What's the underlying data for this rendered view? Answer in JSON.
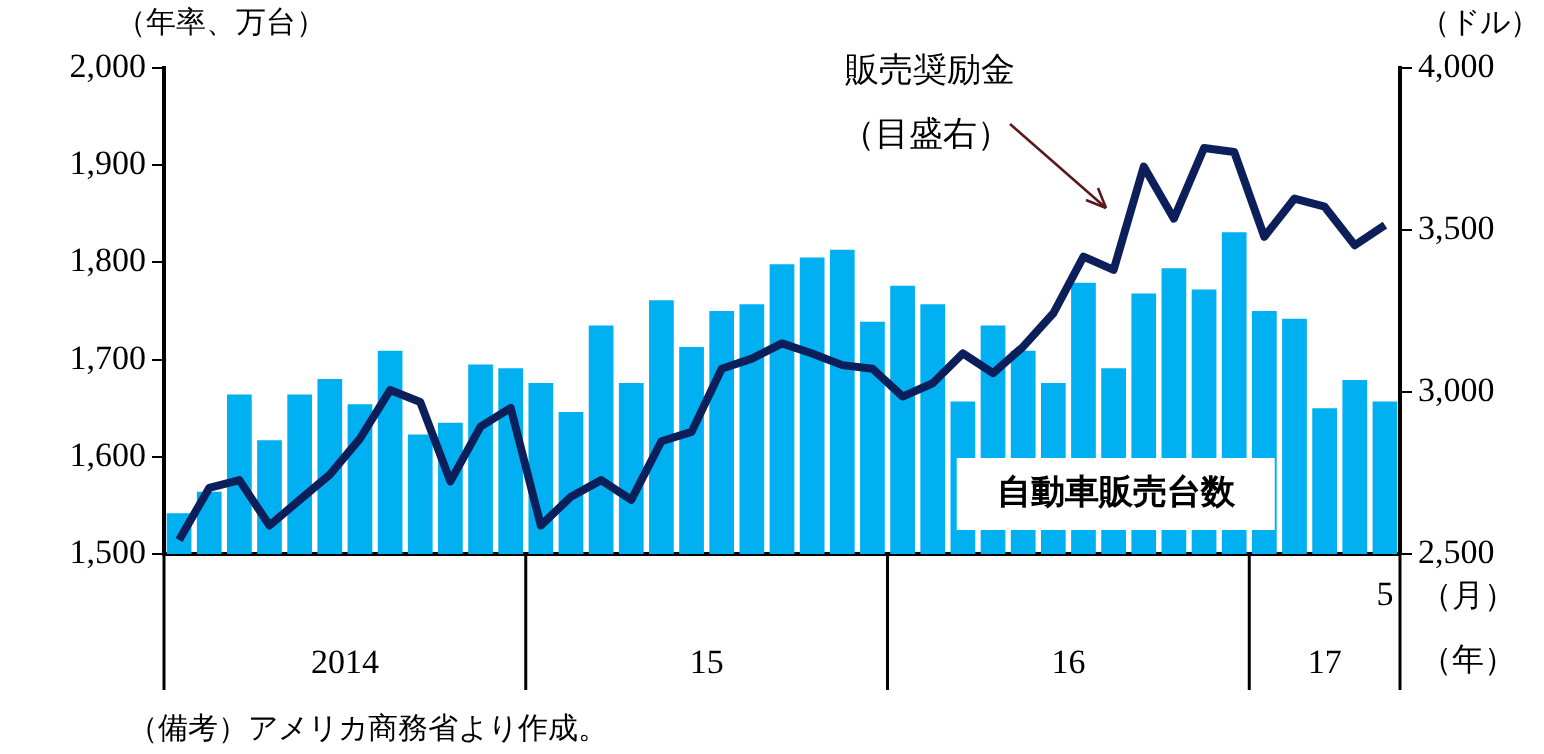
{
  "chart_data": {
    "type": "bar",
    "ylabel": "（年率、万台）",
    "y2label": "（ドル）",
    "categories": [
      null,
      null,
      null,
      null,
      null,
      null,
      null,
      null,
      null,
      null,
      null,
      null,
      null,
      null,
      null,
      null,
      null,
      null,
      null,
      null,
      null,
      null,
      null,
      null,
      null,
      null,
      null,
      null,
      null,
      null,
      null,
      null,
      null,
      null,
      null,
      null,
      null,
      null,
      null,
      null,
      "5"
    ],
    "series": [
      {
        "name": "自動車販売台数",
        "color": "#00b0f0",
        "values": [
          1542,
          1564,
          1664,
          1617,
          1664,
          1680,
          1654,
          1709,
          1623,
          1635,
          1695,
          1691,
          1676,
          1646,
          1735,
          1676,
          1761,
          1713,
          1750,
          1757,
          1798,
          1805,
          1813,
          1739,
          1776,
          1757,
          1657,
          1735,
          1709,
          1676,
          1779,
          1691,
          1768,
          1794,
          1772,
          1831,
          1750,
          1742,
          1650,
          1679,
          1657
        ]
      },
      {
        "name": "販売奨励金",
        "type": "line",
        "axis": "y2",
        "color": "#0d1f5a",
        "values": [
          2543,
          2704,
          2728,
          2588,
          2667,
          2745,
          2856,
          3006,
          2969,
          2724,
          2893,
          2951,
          2588,
          2677,
          2728,
          2667,
          2848,
          2877,
          3072,
          3103,
          3150,
          3119,
          3083,
          3072,
          2986,
          3027,
          3119,
          3058,
          3140,
          3243,
          3418,
          3377,
          3696,
          3535,
          3753,
          3741,
          3479,
          3597,
          3572,
          3453,
          3515
        ]
      }
    ],
    "ylim": [
      1500,
      2000
    ],
    "yticks": [
      {
        "value": 1500,
        "label": "1,500"
      },
      {
        "value": 1600,
        "label": "1,600"
      },
      {
        "value": 1700,
        "label": "1,700"
      },
      {
        "value": 1800,
        "label": "1,800"
      },
      {
        "value": 1900,
        "label": "1,900"
      },
      {
        "value": 2000,
        "label": "2,000"
      }
    ],
    "y2lim": [
      2500,
      4000
    ],
    "y2ticks": [
      {
        "value": 2500,
        "label": "2,500"
      },
      {
        "value": 3000,
        "label": "3,000"
      },
      {
        "value": 3500,
        "label": "3,500"
      },
      {
        "value": 4000,
        "label": "4,000"
      }
    ],
    "grid": false,
    "legend": false,
    "annotations": [
      "2014",
      "15",
      "16",
      "17",
      "（月）",
      "（年）",
      "（目盛右）",
      "（備考）アメリカ商務省より作成。"
    ]
  }
}
